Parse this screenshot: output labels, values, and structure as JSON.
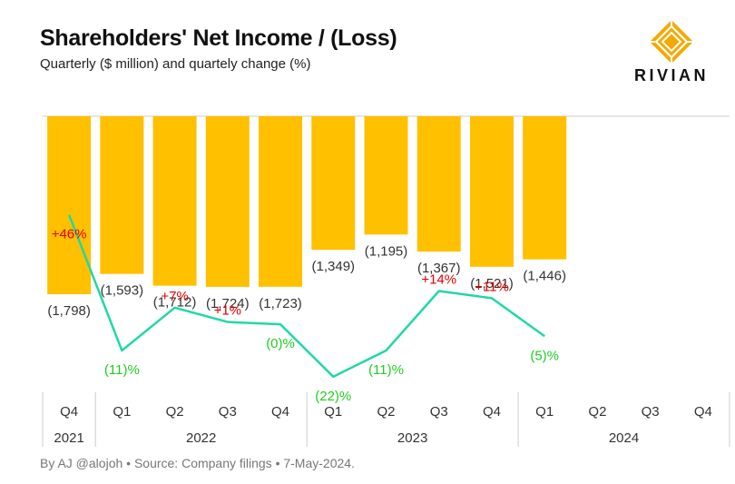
{
  "title": "Shareholders' Net Income / (Loss)",
  "subtitle": "Quarterly ($ million) and quartely change (%)",
  "logo_text": "RIVIAN",
  "footer": "By AJ @alojoh • Source: Company filings • 7-May-2024.",
  "colors": {
    "bar": "#FFC000",
    "line": "#1FD8A8",
    "positive": "#E00000",
    "negative": "#22CC22",
    "axis": "#cccccc",
    "logo": "#F5A800"
  },
  "chart_data": {
    "type": "bar",
    "categories": [
      "Q4",
      "Q1",
      "Q2",
      "Q3",
      "Q4",
      "Q1",
      "Q2",
      "Q3",
      "Q4",
      "Q1",
      "Q2",
      "Q3",
      "Q4"
    ],
    "year_groups": [
      {
        "label": "2021",
        "span": 1
      },
      {
        "label": "2022",
        "span": 4
      },
      {
        "label": "2023",
        "span": 4
      },
      {
        "label": "2024",
        "span": 4
      }
    ],
    "values": [
      -1798,
      -1593,
      -1712,
      -1724,
      -1723,
      -1349,
      -1195,
      -1367,
      -1521,
      -1446,
      null,
      null,
      null
    ],
    "value_labels": [
      "(1,798)",
      "(1,593)",
      "(1,712)",
      "(1,724)",
      "(1,723)",
      "(1,349)",
      "(1,195)",
      "(1,367)",
      "(1,521)",
      "(1,446)",
      "",
      "",
      ""
    ],
    "change_pct": [
      46,
      -11,
      7,
      1,
      0,
      -22,
      -11,
      14,
      11,
      -5,
      null,
      null,
      null
    ],
    "change_labels": [
      "+46%",
      "(11)%",
      "+7%",
      "+1%",
      "(0)%",
      "(22)%",
      "(11)%",
      "+14%",
      "+11%",
      "(5)%",
      "",
      "",
      ""
    ],
    "ylim": [
      -2000,
      0
    ]
  }
}
